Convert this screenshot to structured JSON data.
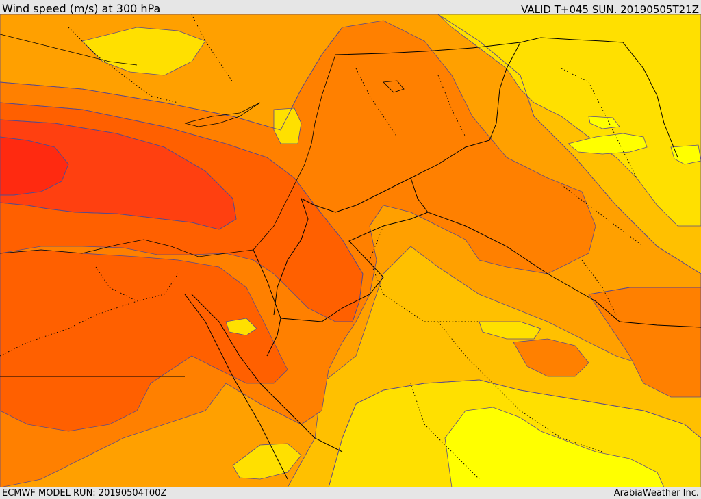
{
  "header": {
    "title": "Wind speed (m/s) at 300 hPa",
    "valid_time": "VALID T+045 SUN. 20190505T21Z"
  },
  "footer": {
    "model_run": "ECMWF MODEL RUN: 20190504T00Z",
    "credit": "ArabiaWeather Inc."
  },
  "map": {
    "colors": {
      "background": "#ffc000",
      "band_orange_light": "#ffa000",
      "band_orange": "#ff8000",
      "band_orange_dark": "#ff6000",
      "band_red_orange": "#ff4010",
      "band_red": "#ff2a10",
      "band_yellow_light": "#ffe000",
      "band_yellow": "#ffff00",
      "isotach_line": "#5a4a8a",
      "border_line": "#000000"
    }
  }
}
